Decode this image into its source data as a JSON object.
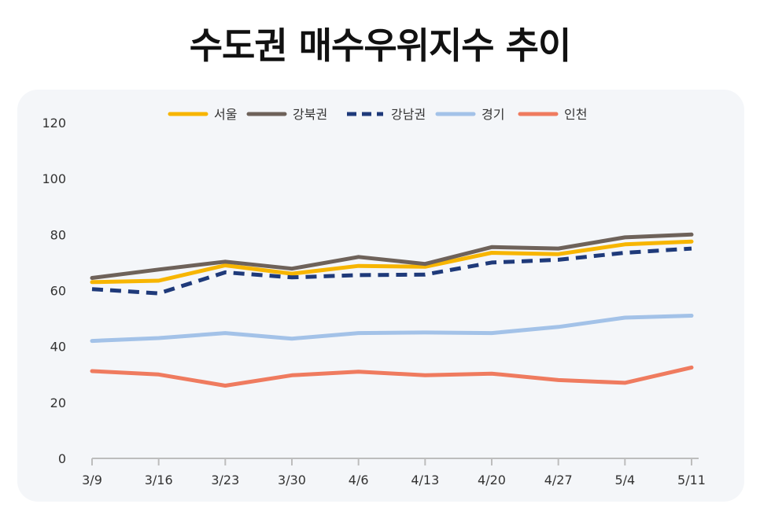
{
  "chart_data": {
    "type": "line",
    "title": "수도권 매수우위지수 추이",
    "x": [
      "3/9",
      "3/16",
      "3/23",
      "3/30",
      "4/6",
      "4/13",
      "4/20",
      "4/27",
      "5/4",
      "5/11"
    ],
    "ylim": [
      0,
      120
    ],
    "yticks": [
      0,
      20,
      40,
      60,
      80,
      100,
      120
    ],
    "grid": false,
    "legend": "top-center",
    "series": [
      {
        "name": "서울",
        "color": "#f7b500",
        "dash": false,
        "values": [
          63.0,
          63.5,
          69.0,
          66.0,
          68.8,
          68.5,
          73.5,
          73.0,
          76.5,
          77.5
        ]
      },
      {
        "name": "강북권",
        "color": "#6e625a",
        "dash": false,
        "values": [
          64.5,
          67.5,
          70.3,
          67.8,
          72.0,
          69.5,
          75.5,
          75.0,
          79.0,
          80.0
        ]
      },
      {
        "name": "강남권",
        "color": "#1f3a7a",
        "dash": true,
        "values": [
          60.5,
          59.0,
          66.5,
          64.7,
          65.5,
          65.7,
          70.0,
          71.0,
          73.5,
          75.0
        ]
      },
      {
        "name": "경기",
        "color": "#a3c2e8",
        "dash": false,
        "values": [
          42.0,
          43.0,
          44.8,
          42.8,
          44.8,
          45.0,
          44.8,
          47.0,
          50.3,
          51.0
        ]
      },
      {
        "name": "인천",
        "color": "#ef7b5f",
        "dash": false,
        "values": [
          31.2,
          30.0,
          26.0,
          29.7,
          31.0,
          29.7,
          30.3,
          28.0,
          27.0,
          32.5
        ]
      }
    ]
  }
}
